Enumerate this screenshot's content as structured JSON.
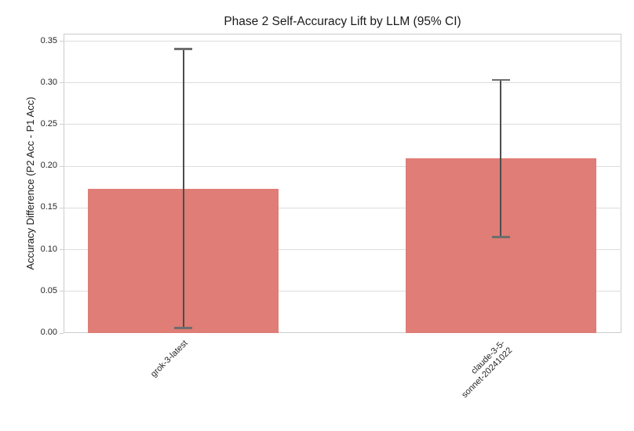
{
  "chart_data": {
    "type": "bar",
    "title": "Phase 2 Self-Accuracy Lift by LLM (95% CI)",
    "xlabel": "",
    "ylabel": "Accuracy Difference (P2 Acc - P1 Acc)",
    "categories": [
      "grok-3-latest",
      "claude-3-5-\nsonnet-20241022"
    ],
    "values": [
      0.173,
      0.21
    ],
    "ci_low": [
      0.006,
      0.115
    ],
    "ci_high": [
      0.341,
      0.304
    ],
    "ylim": [
      0,
      0.359
    ],
    "ytick_step": 0.05,
    "yticks": [
      "0.00",
      "0.05",
      "0.10",
      "0.15",
      "0.20",
      "0.25",
      "0.30",
      "0.35"
    ],
    "grid": "horizontal",
    "legend": "none",
    "bar_color": "#df7d76",
    "error_color": "#4d4d4d",
    "error_cap_color": "#6e6e6e",
    "axis_color": "#cccccc",
    "grid_color": "#dddddd",
    "text_color": "#262626"
  }
}
